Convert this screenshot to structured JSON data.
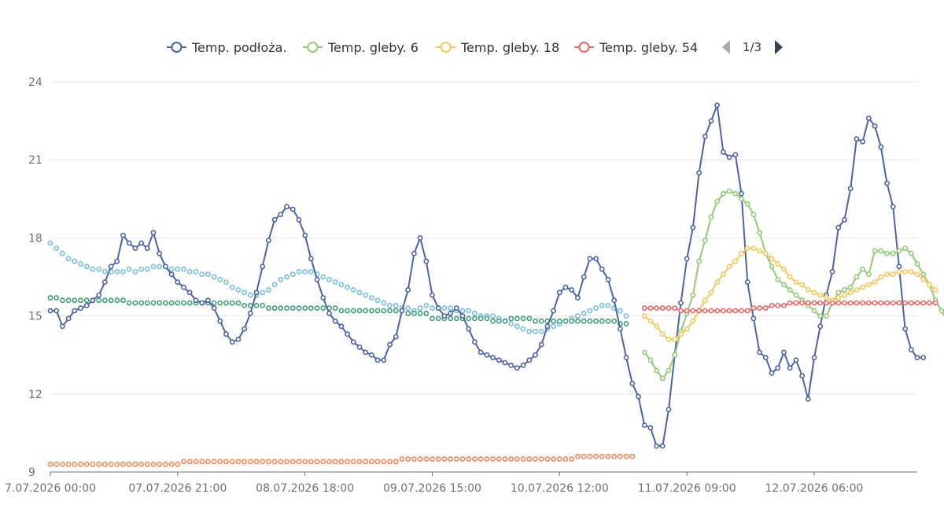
{
  "chart_data": {
    "type": "line",
    "title": "",
    "xlabel": "",
    "ylabel": "",
    "ylim": [
      9,
      24
    ],
    "y_ticks": [
      "9",
      "12",
      "15",
      "18",
      "21",
      "24"
    ],
    "x_ticks": [
      "7.07.2026 00:00",
      "07.07.2026 21:00",
      "08.07.2026 18:00",
      "09.07.2026 15:00",
      "10.07.2026 12:00",
      "11.07.2026 09:00",
      "12.07.2026 06:00"
    ],
    "x_tick_hours": [
      0,
      21,
      42,
      63,
      84,
      105,
      126
    ],
    "x_range_hours": [
      0,
      143
    ],
    "sample_interval_hours": 1,
    "grid": true,
    "legend_position": "top-center",
    "legend_page": "1/3",
    "series": [
      {
        "name": "Temp. podłoża.",
        "color": "#4b64a8",
        "in_legend": true,
        "start_hour": 0,
        "values": [
          15.2,
          15.2,
          14.6,
          14.9,
          15.2,
          15.3,
          15.4,
          15.6,
          15.8,
          16.3,
          16.9,
          17.1,
          18.1,
          17.8,
          17.6,
          17.8,
          17.6,
          18.2,
          17.4,
          16.9,
          16.6,
          16.3,
          16.1,
          15.9,
          15.6,
          15.5,
          15.6,
          15.3,
          14.8,
          14.3,
          14.0,
          14.1,
          14.5,
          15.1,
          15.9,
          16.9,
          17.9,
          18.7,
          18.9,
          19.2,
          19.1,
          18.7,
          18.1,
          17.2,
          16.4,
          15.7,
          15.1,
          14.8,
          14.6,
          14.3,
          14.0,
          13.8,
          13.6,
          13.5,
          13.3,
          13.3,
          13.9,
          14.2,
          15.2,
          16.0,
          17.4,
          18.0,
          17.1,
          15.8,
          15.3,
          15.0,
          15.1,
          15.3,
          15.0,
          14.5,
          14.0,
          13.6,
          13.5,
          13.4,
          13.3,
          13.2,
          13.1,
          13.0,
          13.1,
          13.3,
          13.5,
          13.9,
          14.6,
          15.2,
          15.9,
          16.1,
          16.0,
          15.7,
          16.5,
          17.2,
          17.2,
          16.8,
          16.4,
          15.6,
          14.5,
          13.4,
          12.4,
          11.9,
          10.8,
          10.7,
          10.0,
          10.0,
          11.4,
          13.5,
          15.5,
          17.2,
          18.4,
          20.5,
          21.9,
          22.5,
          23.1,
          21.3,
          21.1,
          21.2,
          19.7,
          16.3,
          14.9,
          13.6,
          13.4,
          12.8,
          13.0,
          13.6,
          13.0,
          13.3,
          12.7,
          11.8,
          13.4,
          14.6,
          15.8,
          16.7,
          18.4,
          18.7,
          19.9,
          21.8,
          21.7,
          22.6,
          22.3,
          21.5,
          20.1,
          19.2,
          16.9,
          14.5,
          13.7,
          13.4,
          13.4
        ]
      },
      {
        "name": "Temp. gleby. 6",
        "color": "#91cc75",
        "in_legend": true,
        "start_hour": 98,
        "values": [
          13.6,
          13.3,
          12.9,
          12.6,
          12.9,
          13.5,
          14.4,
          15.1,
          15.8,
          17.1,
          17.9,
          18.8,
          19.4,
          19.7,
          19.8,
          19.7,
          19.5,
          19.3,
          18.9,
          18.2,
          17.4,
          16.9,
          16.4,
          16.2,
          16.0,
          15.8,
          15.6,
          15.4,
          15.2,
          15.0,
          15.0,
          15.5,
          15.9,
          16.0,
          16.1,
          16.5,
          16.8,
          16.6,
          17.5,
          17.5,
          17.4,
          17.4,
          17.5,
          17.6,
          17.4,
          17.0,
          16.6,
          16.2,
          15.6,
          15.2,
          14.8
        ]
      },
      {
        "name": "Temp. gleby. 18",
        "color": "#fac858",
        "in_legend": true,
        "start_hour": 98,
        "values": [
          15.0,
          14.8,
          14.6,
          14.3,
          14.1,
          14.1,
          14.3,
          14.5,
          14.8,
          15.2,
          15.6,
          15.9,
          16.3,
          16.6,
          16.9,
          17.1,
          17.4,
          17.6,
          17.6,
          17.5,
          17.4,
          17.2,
          17.0,
          16.8,
          16.5,
          16.3,
          16.2,
          16.0,
          15.9,
          15.8,
          15.7,
          15.6,
          15.7,
          15.8,
          15.9,
          16.0,
          16.1,
          16.2,
          16.3,
          16.5,
          16.6,
          16.6,
          16.7,
          16.7,
          16.7,
          16.6,
          16.4,
          16.2,
          16.0
        ]
      },
      {
        "name": "Temp. gleby. 54",
        "color": "#ee6666",
        "in_legend": true,
        "start_hour": 98,
        "values": [
          15.3,
          15.3,
          15.3,
          15.3,
          15.3,
          15.3,
          15.2,
          15.2,
          15.2,
          15.2,
          15.2,
          15.2,
          15.2,
          15.2,
          15.2,
          15.2,
          15.2,
          15.2,
          15.3,
          15.3,
          15.3,
          15.4,
          15.4,
          15.4,
          15.5,
          15.5,
          15.5,
          15.5,
          15.5,
          15.5,
          15.5,
          15.5,
          15.5,
          15.5,
          15.5,
          15.5,
          15.5,
          15.5,
          15.5,
          15.5,
          15.5,
          15.5,
          15.5,
          15.5,
          15.5,
          15.5,
          15.5,
          15.5,
          15.5
        ]
      },
      {
        "name": "",
        "color": "#73c0de",
        "in_legend": false,
        "start_hour": 0,
        "values": [
          17.8,
          17.6,
          17.4,
          17.2,
          17.1,
          17.0,
          16.9,
          16.8,
          16.8,
          16.7,
          16.7,
          16.7,
          16.7,
          16.8,
          16.7,
          16.8,
          16.8,
          16.9,
          16.9,
          16.9,
          16.8,
          16.8,
          16.8,
          16.7,
          16.7,
          16.6,
          16.6,
          16.5,
          16.4,
          16.3,
          16.1,
          16.0,
          15.9,
          15.8,
          15.8,
          15.9,
          16.0,
          16.2,
          16.4,
          16.5,
          16.6,
          16.7,
          16.7,
          16.7,
          16.6,
          16.5,
          16.4,
          16.3,
          16.2,
          16.1,
          16.0,
          15.9,
          15.8,
          15.7,
          15.6,
          15.5,
          15.4,
          15.4,
          15.3,
          15.3,
          15.2,
          15.3,
          15.4,
          15.3,
          15.3,
          15.3,
          15.3,
          15.2,
          15.2,
          15.2,
          15.1,
          15.0,
          15.0,
          15.0,
          14.9,
          14.8,
          14.7,
          14.6,
          14.5,
          14.4,
          14.4,
          14.4,
          14.5,
          14.6,
          14.7,
          14.8,
          14.9,
          15.0,
          15.1,
          15.2,
          15.3,
          15.4,
          15.4,
          15.3,
          15.2,
          15.0
        ]
      },
      {
        "name": "",
        "color": "#3ba272",
        "in_legend": false,
        "start_hour": 0,
        "values": [
          15.7,
          15.7,
          15.6,
          15.6,
          15.6,
          15.6,
          15.6,
          15.6,
          15.6,
          15.6,
          15.6,
          15.6,
          15.6,
          15.5,
          15.5,
          15.5,
          15.5,
          15.5,
          15.5,
          15.5,
          15.5,
          15.5,
          15.5,
          15.5,
          15.5,
          15.5,
          15.5,
          15.5,
          15.5,
          15.5,
          15.5,
          15.5,
          15.4,
          15.4,
          15.4,
          15.4,
          15.3,
          15.3,
          15.3,
          15.3,
          15.3,
          15.3,
          15.3,
          15.3,
          15.3,
          15.3,
          15.3,
          15.3,
          15.2,
          15.2,
          15.2,
          15.2,
          15.2,
          15.2,
          15.2,
          15.2,
          15.2,
          15.2,
          15.2,
          15.1,
          15.1,
          15.1,
          15.1,
          14.9,
          14.9,
          14.9,
          14.9,
          14.9,
          14.9,
          14.9,
          14.9,
          14.9,
          14.9,
          14.8,
          14.8,
          14.8,
          14.9,
          14.9,
          14.9,
          14.9,
          14.8,
          14.8,
          14.8,
          14.8,
          14.8,
          14.8,
          14.8,
          14.8,
          14.8,
          14.8,
          14.8,
          14.8,
          14.8,
          14.8,
          14.7,
          14.7
        ]
      },
      {
        "name": "",
        "color": "#fc8452",
        "in_legend": false,
        "start_hour": 0,
        "values": [
          9.3,
          9.3,
          9.3,
          9.3,
          9.3,
          9.3,
          9.3,
          9.3,
          9.3,
          9.3,
          9.3,
          9.3,
          9.3,
          9.3,
          9.3,
          9.3,
          9.3,
          9.3,
          9.3,
          9.3,
          9.3,
          9.3,
          9.4,
          9.4,
          9.4,
          9.4,
          9.4,
          9.4,
          9.4,
          9.4,
          9.4,
          9.4,
          9.4,
          9.4,
          9.4,
          9.4,
          9.4,
          9.4,
          9.4,
          9.4,
          9.4,
          9.4,
          9.4,
          9.4,
          9.4,
          9.4,
          9.4,
          9.4,
          9.4,
          9.4,
          9.4,
          9.4,
          9.4,
          9.4,
          9.4,
          9.4,
          9.4,
          9.4,
          9.5,
          9.5,
          9.5,
          9.5,
          9.5,
          9.5,
          9.5,
          9.5,
          9.5,
          9.5,
          9.5,
          9.5,
          9.5,
          9.5,
          9.5,
          9.5,
          9.5,
          9.5,
          9.5,
          9.5,
          9.5,
          9.5,
          9.5,
          9.5,
          9.5,
          9.5,
          9.5,
          9.5,
          9.5,
          9.6,
          9.6,
          9.6,
          9.6,
          9.6,
          9.6,
          9.6,
          9.6,
          9.6,
          9.6
        ]
      }
    ]
  }
}
